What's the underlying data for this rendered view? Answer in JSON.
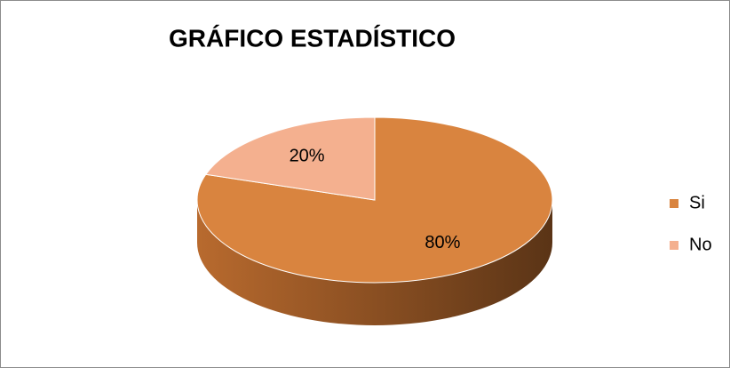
{
  "chart_data": {
    "type": "pie",
    "title": "GRÁFICO ESTADÍSTICO",
    "categories": [
      "Si",
      "No"
    ],
    "values": [
      80,
      20
    ],
    "value_labels": [
      "80%",
      "20%"
    ],
    "colors": [
      "#d9843f",
      "#f4b08f"
    ],
    "legend": "right"
  }
}
